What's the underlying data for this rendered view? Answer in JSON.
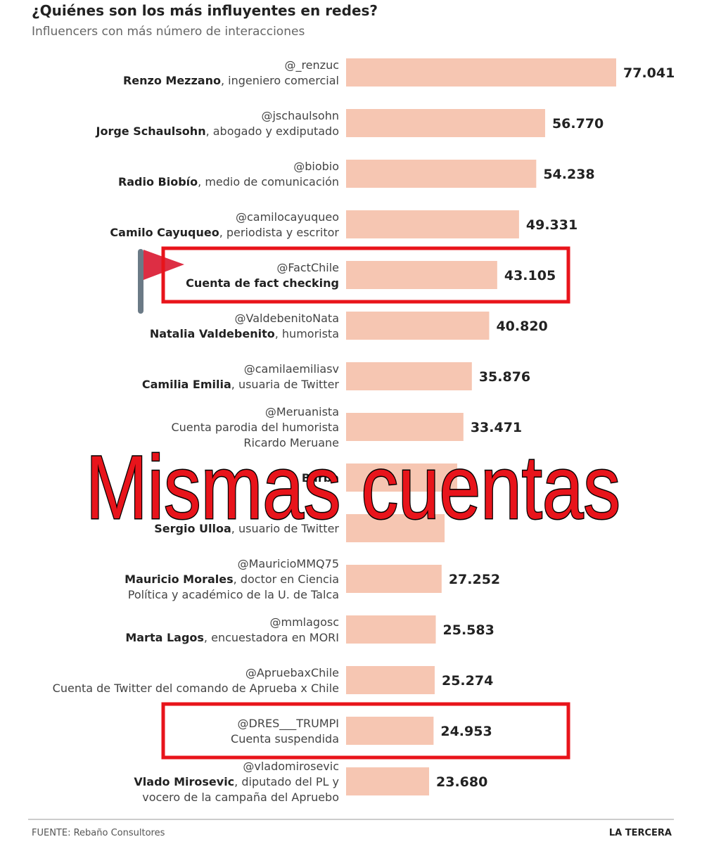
{
  "chart_data": {
    "type": "barh",
    "title": "¿Quiénes son los más influyentes en redes?",
    "subtitle": "Influencers con más número de interacciones",
    "categories": [
      "@_renzuc",
      "@jschaulsohn",
      "@biobio",
      "@camilocayuqueo",
      "@FactChile",
      "@ValdebenitoNata",
      "@camilaemiliasv",
      "@Meruanista",
      null,
      null,
      "@MauricioMMQ75",
      "@mmlagosc",
      "@ApruebaxChile",
      "@DRES___TRUMPI",
      "@vladomirosevic"
    ],
    "names": [
      "Renzo Mezzano",
      "Jorge Schaulsohn",
      "Radio Biobío",
      "Camilo Cayuqueo",
      "Cuenta de fact checking",
      "Natalia Valdebenito",
      "Camilia Emilia",
      null,
      "Bárba",
      "Sergio Ulloa",
      "Mauricio Morales",
      "Marta Lagos",
      null,
      null,
      "Vlado Mirosevic"
    ],
    "descriptions": [
      [
        ", ingeniero comercial"
      ],
      [
        ", abogado y exdiputado"
      ],
      [
        ", medio de comunicación"
      ],
      [
        ", periodista y escritor"
      ],
      null,
      [
        ", humorista"
      ],
      [
        ", usuaria de Twitter"
      ],
      [
        "Cuenta parodia del humorista",
        "Ricardo Meruane"
      ],
      null,
      [
        ", usuario de Twitter"
      ],
      [
        ", doctor en Ciencia",
        "Política y académico de la U. de Talca"
      ],
      [
        ", encuestadora en MORI"
      ],
      [
        "Cuenta de Twitter del comando de Aprueba x Chile"
      ],
      [
        "Cuenta suspendida"
      ],
      [
        ", diputado del PL y",
        "vocero de la campaña del Apruebo"
      ]
    ],
    "values": [
      77041,
      56770,
      54238,
      49331,
      43105,
      40820,
      35876,
      33471,
      31700,
      28100,
      27252,
      25583,
      25274,
      24953,
      23680
    ],
    "value_labels": [
      "77.041",
      "56.770",
      "54.238",
      "49.331",
      "43.105",
      "40.820",
      "35.876",
      "33.471",
      null,
      null,
      "27.252",
      "25.583",
      "25.274",
      "24.953",
      "23.680"
    ],
    "color": "#f6c6b2",
    "highlighted": [
      4,
      13
    ],
    "highlight_color": "#e8141b",
    "overlay": "Mismas cuentas",
    "source": "FUENTE: Rebaño Consultores",
    "brand": "LA TERCERA"
  }
}
